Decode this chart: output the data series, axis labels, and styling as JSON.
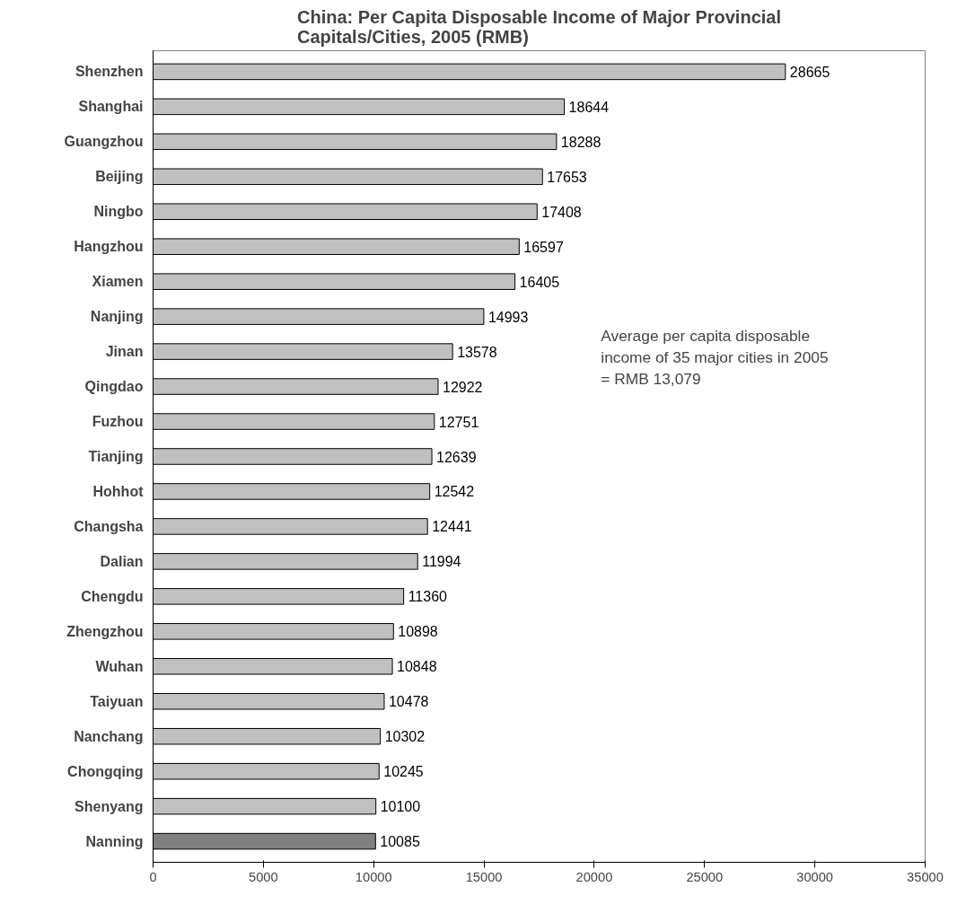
{
  "chart_data": {
    "type": "bar",
    "orientation": "horizontal",
    "title": "China: Per Capita Disposable Income of Major Provincial Capitals/Cities, 2005 (RMB)",
    "categories": [
      "Shenzhen",
      "Shanghai",
      "Guangzhou",
      "Beijing",
      "Ningbo",
      "Hangzhou",
      "Xiamen",
      "Nanjing",
      "Jinan",
      "Qingdao",
      "Fuzhou",
      "Tianjing",
      "Hohhot",
      "Changsha",
      "Dalian",
      "Chengdu",
      "Zhengzhou",
      "Wuhan",
      "Taiyuan",
      "Nanchang",
      "Chongqing",
      "Shenyang",
      "Nanning"
    ],
    "values": [
      28665,
      18644,
      18288,
      17653,
      17408,
      16597,
      16405,
      14993,
      13578,
      12922,
      12751,
      12639,
      12542,
      12441,
      11994,
      11360,
      10898,
      10848,
      10478,
      10302,
      10245,
      10100,
      10085
    ],
    "colors": [
      "#c0c0c0",
      "#c0c0c0",
      "#c0c0c0",
      "#c0c0c0",
      "#c0c0c0",
      "#c0c0c0",
      "#c0c0c0",
      "#c0c0c0",
      "#c0c0c0",
      "#c0c0c0",
      "#c0c0c0",
      "#c0c0c0",
      "#c0c0c0",
      "#c0c0c0",
      "#c0c0c0",
      "#c0c0c0",
      "#c0c0c0",
      "#c0c0c0",
      "#c0c0c0",
      "#c0c0c0",
      "#c0c0c0",
      "#c0c0c0",
      "#808080"
    ],
    "xlim": [
      0,
      35000
    ],
    "xticks": [
      0,
      5000,
      10000,
      15000,
      20000,
      25000,
      30000,
      35000
    ],
    "data_labels": true,
    "grid": false,
    "annotations": [
      "Average per capita disposable income of 35 major cities in 2005 = RMB 13,079"
    ]
  }
}
